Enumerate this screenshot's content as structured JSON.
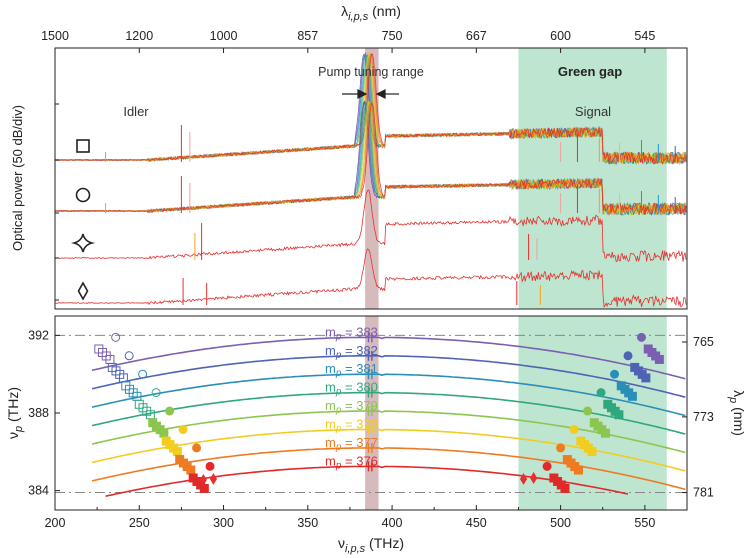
{
  "chart_data": [
    {
      "type": "line",
      "panel": "spectra",
      "title": "",
      "top_axis": {
        "label_base": "λ",
        "label_sub": "i,p,s",
        "label_unit": " (nm)",
        "ticks": [
          {
            "v": 200,
            "label": "1500"
          },
          {
            "v": 250,
            "label": "1200"
          },
          {
            "v": 300,
            "label": "1000"
          },
          {
            "v": 350,
            "label": "857"
          },
          {
            "v": 400,
            "label": "750"
          },
          {
            "v": 450,
            "label": "667"
          },
          {
            "v": 500,
            "label": "600"
          },
          {
            "v": 550,
            "label": "545"
          }
        ]
      },
      "ylabel": "Optical power (50 dB/div)",
      "xlim": [
        200,
        575
      ],
      "labels": {
        "idler": "Idler",
        "signal": "Signal",
        "pump_range": "Pump tuning range",
        "green_gap": "Green gap"
      },
      "green_gap_thz": [
        475,
        563
      ],
      "pump_band_thz": [
        384,
        392
      ],
      "traces": [
        {
          "marker": "square",
          "name": "square-series",
          "multicolor": true
        },
        {
          "marker": "circle",
          "name": "circle-series",
          "multicolor": true
        },
        {
          "marker": "star",
          "name": "star-series",
          "multicolor": false
        },
        {
          "marker": "diamond",
          "name": "diamond-series",
          "multicolor": false
        }
      ]
    },
    {
      "type": "line",
      "panel": "tuning",
      "xlabel_base": "ν",
      "xlabel_sub": "i,p,s",
      "xlabel_unit": " (THz)",
      "ylabel_base": "ν",
      "ylabel_sub": "p",
      "ylabel_unit": " (THz)",
      "y2label_base": "λ",
      "y2label_sub": "p",
      "y2label_unit": " (nm)",
      "xlim": [
        200,
        575
      ],
      "ylim": [
        383,
        393
      ],
      "x_ticks": [
        {
          "v": 200,
          "label": "200"
        },
        {
          "v": 250,
          "label": "250"
        },
        {
          "v": 300,
          "label": "300"
        },
        {
          "v": 350,
          "label": "350"
        },
        {
          "v": 400,
          "label": "400"
        },
        {
          "v": 450,
          "label": "450"
        },
        {
          "v": 500,
          "label": "500"
        },
        {
          "v": 550,
          "label": "550"
        }
      ],
      "y_ticks": [
        {
          "v": 384,
          "label": "384"
        },
        {
          "v": 388,
          "label": "388"
        },
        {
          "v": 392,
          "label": "392"
        }
      ],
      "y2_ticks": [
        {
          "v": 391.66,
          "label": "765"
        },
        {
          "v": 387.8,
          "label": "773"
        },
        {
          "v": 383.9,
          "label": "781"
        }
      ],
      "ref_lines": [
        392,
        383.9
      ],
      "series": [
        {
          "m": "383",
          "color": "#7b5fb0",
          "y_center": 391.9,
          "x_start": 222,
          "x_end": 575
        },
        {
          "m": "382",
          "color": "#4f63b3",
          "y_center": 390.95,
          "x_start": 222,
          "x_end": 575
        },
        {
          "m": "381",
          "color": "#2a8fb8",
          "y_center": 390.0,
          "x_start": 222,
          "x_end": 575
        },
        {
          "m": "380",
          "color": "#2fa77f",
          "y_center": 389.05,
          "x_start": 222,
          "x_end": 575
        },
        {
          "m": "379",
          "color": "#8cc54f",
          "y_center": 388.1,
          "x_start": 222,
          "x_end": 575
        },
        {
          "m": "378",
          "color": "#f2cc1f",
          "y_center": 387.15,
          "x_start": 222,
          "x_end": 575
        },
        {
          "m": "377",
          "color": "#ee7a22",
          "y_center": 386.2,
          "x_start": 222,
          "x_end": 575
        },
        {
          "m": "376",
          "color": "#e02a2a",
          "y_center": 385.25,
          "x_start": 230,
          "x_end": 540
        }
      ],
      "legend_prefix": "m",
      "legend_sub": "p",
      "legend_eq": " = "
    }
  ]
}
